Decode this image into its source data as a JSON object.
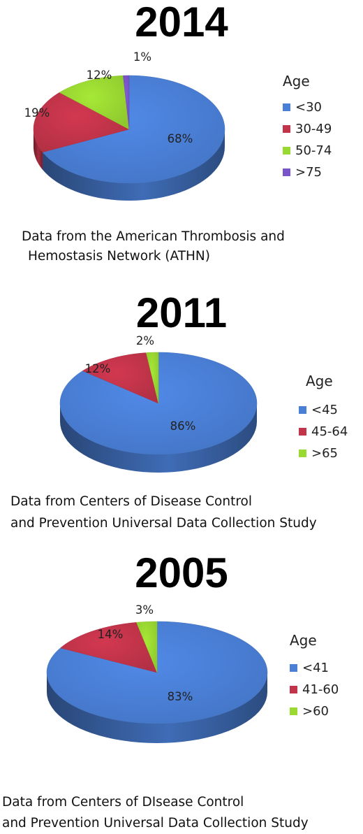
{
  "chart_data": [
    {
      "type": "pie",
      "title": "2014",
      "legend_title": "Age",
      "categories": [
        "<30",
        "30-49",
        "50-74",
        ">75"
      ],
      "values": [
        68,
        19,
        12,
        1
      ],
      "labels": [
        "68%",
        "19%",
        "12%",
        "1%"
      ],
      "colors": [
        "#4a7fd6",
        "#c2344a",
        "#9ad832",
        "#7a55c8"
      ],
      "legend_position": "right",
      "source_lines": [
        "Data from the American Thrombosis and",
        "Hemostasis Network (ATHN)"
      ]
    },
    {
      "type": "pie",
      "title": "2011",
      "legend_title": "Age",
      "categories": [
        "<45",
        "45-64",
        ">65"
      ],
      "values": [
        86,
        12,
        2
      ],
      "labels": [
        "86%",
        "12%",
        "2%"
      ],
      "colors": [
        "#4a7fd6",
        "#c2344a",
        "#9ad832"
      ],
      "legend_position": "right",
      "source_lines": [
        "Data from Centers of Disease Control",
        "and Prevention Universal Data Collection Study"
      ]
    },
    {
      "type": "pie",
      "title": "2005",
      "legend_title": "Age",
      "categories": [
        "<41",
        "41-60",
        ">60"
      ],
      "values": [
        83,
        14,
        3
      ],
      "labels": [
        "83%",
        "14%",
        "3%"
      ],
      "colors": [
        "#4a7fd6",
        "#c2344a",
        "#9ad832"
      ],
      "legend_position": "right",
      "source_lines": [
        "Data from Centers of DIsease Control",
        "and Prevention Universal Data Collection Study"
      ]
    }
  ]
}
